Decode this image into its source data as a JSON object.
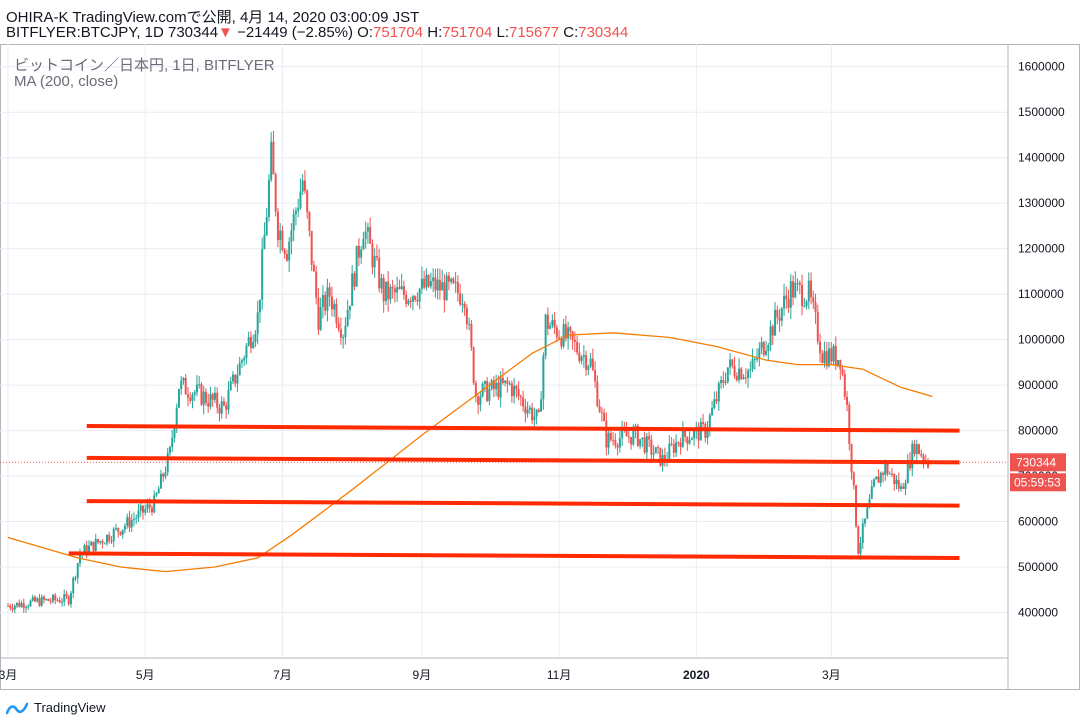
{
  "header": {
    "line1": "OHIRA-K TradingView.comで公開, 4月 14, 2020 03:00:09 JST",
    "symbol_line": "BITFLYER:BTCJPY, 1D 730344",
    "change": "−21449 (−2.85%)",
    "o_label": "O:",
    "o_value": "751704",
    "h_label": "H:",
    "h_value": "751704",
    "l_label": "L:",
    "l_value": "715677",
    "c_label": "C:",
    "c_value": "730344"
  },
  "legend": {
    "title": "ビットコイン／日本円, 1日, BITFLYER",
    "ma": "MA (200, close)"
  },
  "footer": {
    "logo_text": "TradingView"
  },
  "colors": {
    "up": "#26a69a",
    "down": "#ef5350",
    "ma": "#f57c00",
    "hline": "#ff2a00",
    "grid": "#e9ecf2",
    "axis_text": "#131722"
  },
  "chart_data": {
    "type": "candlestick",
    "symbol": "BTCJPY",
    "interval": "1D",
    "ylim": [
      300000,
      1650000
    ],
    "y_ticks": [
      1600000,
      1500000,
      1400000,
      1300000,
      1200000,
      1100000,
      1000000,
      900000,
      800000,
      700000,
      600000,
      500000,
      400000
    ],
    "x_ticks": [
      {
        "label": "3月",
        "date": "2019-03-01"
      },
      {
        "label": "5月",
        "date": "2019-05-01"
      },
      {
        "label": "7月",
        "date": "2019-07-01"
      },
      {
        "label": "9月",
        "date": "2019-09-01"
      },
      {
        "label": "11月",
        "date": "2019-11-01"
      },
      {
        "label": "2020",
        "date": "2020-01-01"
      },
      {
        "label": "3月",
        "date": "2020-03-01"
      }
    ],
    "x_start": "2019-03-01",
    "x_end": "2020-05-15",
    "price_path": [
      [
        "2019-03-01",
        415000
      ],
      [
        "2019-03-15",
        425000
      ],
      [
        "2019-03-28",
        430000
      ],
      [
        "2019-04-02",
        530000
      ],
      [
        "2019-04-20",
        585000
      ],
      [
        "2019-05-05",
        640000
      ],
      [
        "2019-05-12",
        750000
      ],
      [
        "2019-05-16",
        900000
      ],
      [
        "2019-05-25",
        880000
      ],
      [
        "2019-06-05",
        850000
      ],
      [
        "2019-06-20",
        1050000
      ],
      [
        "2019-06-26",
        1400000
      ],
      [
        "2019-06-29",
        1250000
      ],
      [
        "2019-07-03",
        1200000
      ],
      [
        "2019-07-10",
        1350000
      ],
      [
        "2019-07-17",
        1050000
      ],
      [
        "2019-07-22",
        1100000
      ],
      [
        "2019-07-28",
        1020000
      ],
      [
        "2019-08-06",
        1250000
      ],
      [
        "2019-08-15",
        1100000
      ],
      [
        "2019-08-25",
        1100000
      ],
      [
        "2019-09-05",
        1120000
      ],
      [
        "2019-09-20",
        1100000
      ],
      [
        "2019-09-25",
        880000
      ],
      [
        "2019-10-10",
        900000
      ],
      [
        "2019-10-23",
        820000
      ],
      [
        "2019-10-26",
        1040000
      ],
      [
        "2019-11-05",
        1000000
      ],
      [
        "2019-11-15",
        950000
      ],
      [
        "2019-11-22",
        780000
      ],
      [
        "2019-12-05",
        790000
      ],
      [
        "2019-12-17",
        735000
      ],
      [
        "2019-12-25",
        785000
      ],
      [
        "2020-01-05",
        800000
      ],
      [
        "2020-01-15",
        940000
      ],
      [
        "2020-01-25",
        930000
      ],
      [
        "2020-02-01",
        1000000
      ],
      [
        "2020-02-12",
        1110000
      ],
      [
        "2020-02-20",
        1100000
      ],
      [
        "2020-02-26",
        970000
      ],
      [
        "2020-03-05",
        960000
      ],
      [
        "2020-03-08",
        850000
      ],
      [
        "2020-03-12",
        600000
      ],
      [
        "2020-03-13",
        540000
      ],
      [
        "2020-03-20",
        680000
      ],
      [
        "2020-03-25",
        720000
      ],
      [
        "2020-04-01",
        670000
      ],
      [
        "2020-04-07",
        770000
      ],
      [
        "2020-04-13",
        730344
      ]
    ],
    "ma200": [
      [
        "2019-03-01",
        565000
      ],
      [
        "2019-04-01",
        520000
      ],
      [
        "2019-04-20",
        500000
      ],
      [
        "2019-05-10",
        490000
      ],
      [
        "2019-06-01",
        500000
      ],
      [
        "2019-06-20",
        520000
      ],
      [
        "2019-07-05",
        570000
      ],
      [
        "2019-08-01",
        670000
      ],
      [
        "2019-09-01",
        790000
      ],
      [
        "2019-10-01",
        900000
      ],
      [
        "2019-10-20",
        970000
      ],
      [
        "2019-11-05",
        1010000
      ],
      [
        "2019-11-25",
        1015000
      ],
      [
        "2019-12-20",
        1005000
      ],
      [
        "2020-01-10",
        985000
      ],
      [
        "2020-02-01",
        955000
      ],
      [
        "2020-02-15",
        945000
      ],
      [
        "2020-03-01",
        945000
      ],
      [
        "2020-03-15",
        935000
      ],
      [
        "2020-04-01",
        895000
      ],
      [
        "2020-04-15",
        875000
      ]
    ],
    "horizontal_lines": [
      {
        "from": [
          "2019-04-05",
          810000
        ],
        "to": [
          "2020-04-27",
          800000
        ]
      },
      {
        "from": [
          "2019-04-05",
          740000
        ],
        "to": [
          "2020-04-27",
          730000
        ]
      },
      {
        "from": [
          "2019-04-05",
          645000
        ],
        "to": [
          "2020-04-27",
          635000
        ]
      },
      {
        "from": [
          "2019-03-28",
          530000
        ],
        "to": [
          "2020-04-27",
          520000
        ]
      }
    ],
    "last_price": 730344,
    "countdown": "05:59:53"
  }
}
